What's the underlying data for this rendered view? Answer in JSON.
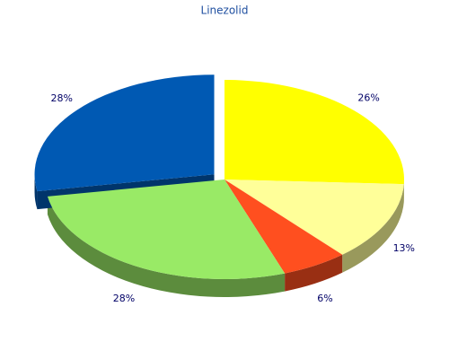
{
  "chart_data": {
    "type": "pie",
    "title": "Linezolid",
    "values": [
      26,
      13,
      6,
      28,
      28
    ],
    "value_labels": [
      "26%",
      "13%",
      "6%",
      "28%",
      "28%"
    ],
    "colors": [
      "#ffff00",
      "#ffff99",
      "#ff4f1f",
      "#99ea66",
      "#0059b3"
    ],
    "exploded": [
      false,
      false,
      false,
      false,
      true
    ]
  }
}
